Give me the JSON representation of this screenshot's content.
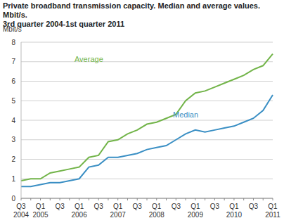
{
  "chart_data": {
    "type": "line",
    "title": "Private broadband transmission capacity. Median and average values. Mbit/s. 3rd quarter 2004-1st quarter 2011",
    "y_label": "Mbit/s",
    "categories": [
      "Q3 2004",
      null,
      "Q1 2005",
      null,
      "Q3",
      null,
      "Q1 2006",
      null,
      "Q3",
      null,
      "Q1 2007",
      null,
      "Q3",
      null,
      "Q1 2008",
      null,
      "Q3",
      null,
      "Q1 2009",
      null,
      "Q3",
      null,
      "Q1 2010",
      null,
      "Q3",
      null,
      "Q1 2011"
    ],
    "series": [
      {
        "name": "Average",
        "color": "#72b449",
        "values": [
          0.9,
          1.0,
          1.0,
          1.3,
          1.4,
          1.5,
          1.6,
          2.1,
          2.2,
          2.9,
          3.0,
          3.3,
          3.5,
          3.8,
          3.9,
          4.1,
          4.3,
          5.0,
          5.4,
          5.5,
          5.7,
          5.9,
          6.1,
          6.3,
          6.6,
          6.8,
          7.4
        ]
      },
      {
        "name": "Median",
        "color": "#3a8fc4",
        "values": [
          0.6,
          0.6,
          0.7,
          0.8,
          0.8,
          0.9,
          1.0,
          1.6,
          1.7,
          2.1,
          2.1,
          2.2,
          2.3,
          2.5,
          2.6,
          2.7,
          3.0,
          3.3,
          3.5,
          3.4,
          3.5,
          3.6,
          3.7,
          3.9,
          4.1,
          4.5,
          5.3
        ]
      }
    ],
    "ylim": [
      0,
      8
    ],
    "yticks": [
      0,
      1,
      2,
      3,
      4,
      5,
      6,
      7,
      8
    ],
    "grid": true
  }
}
